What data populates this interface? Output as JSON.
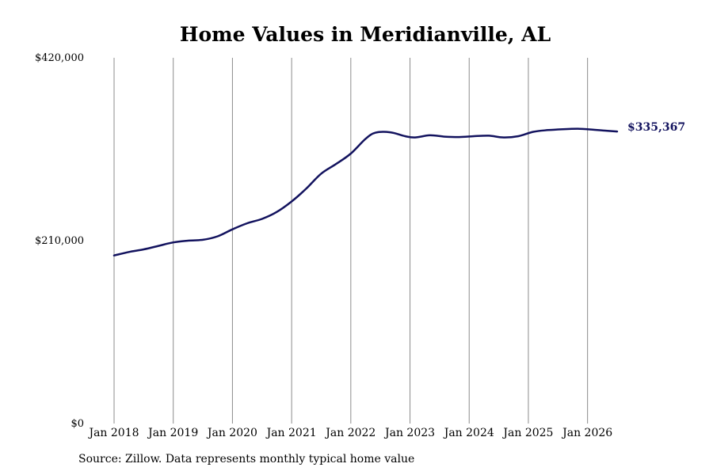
{
  "colors": {
    "line": "#12125e",
    "grid": "#8c8c8c",
    "label": "#12125e"
  },
  "chart_data": {
    "type": "line",
    "title": "Home Values in Meridianville, AL",
    "xlabel": "",
    "ylabel": "",
    "ylim": [
      0,
      420000
    ],
    "xlim": [
      "2018-01",
      "2026-07"
    ],
    "grid": {
      "vertical": true,
      "horizontal": false
    },
    "y_ticks": [
      {
        "value": 0,
        "label": "$0"
      },
      {
        "value": 210000,
        "label": "$210,000"
      },
      {
        "value": 420000,
        "label": "$420,000"
      }
    ],
    "x_ticks": [
      {
        "value": "2018-01",
        "label": "Jan 2018"
      },
      {
        "value": "2019-01",
        "label": "Jan 2019"
      },
      {
        "value": "2020-01",
        "label": "Jan 2020"
      },
      {
        "value": "2021-01",
        "label": "Jan 2021"
      },
      {
        "value": "2022-01",
        "label": "Jan 2022"
      },
      {
        "value": "2023-01",
        "label": "Jan 2023"
      },
      {
        "value": "2024-01",
        "label": "Jan 2024"
      },
      {
        "value": "2025-01",
        "label": "Jan 2025"
      },
      {
        "value": "2026-01",
        "label": "Jan 2026"
      }
    ],
    "end_label": "$335,367",
    "series": [
      {
        "x": [
          "2018-01",
          "2018-04",
          "2018-07",
          "2018-10",
          "2019-01",
          "2019-04",
          "2019-07",
          "2019-10",
          "2020-01",
          "2020-04",
          "2020-07",
          "2020-10",
          "2021-01",
          "2021-04",
          "2021-07",
          "2021-10",
          "2022-01",
          "2022-04",
          "2022-06",
          "2022-09",
          "2022-12",
          "2023-02",
          "2023-05",
          "2023-08",
          "2023-11",
          "2024-02",
          "2024-05",
          "2024-08",
          "2024-11",
          "2025-02",
          "2025-05",
          "2025-08",
          "2025-11",
          "2026-02",
          "2026-04",
          "2026-07"
        ],
        "values": [
          193000,
          197000,
          200000,
          204000,
          208000,
          210000,
          211000,
          215000,
          223000,
          230000,
          235000,
          243000,
          255000,
          270000,
          287000,
          298000,
          310000,
          327000,
          334000,
          334500,
          330000,
          328500,
          331000,
          329500,
          329000,
          330000,
          330500,
          328500,
          330000,
          335000,
          337000,
          338000,
          338500,
          337500,
          336500,
          335367
        ]
      }
    ]
  },
  "source": "Source: Zillow. Data represents monthly typical home value"
}
